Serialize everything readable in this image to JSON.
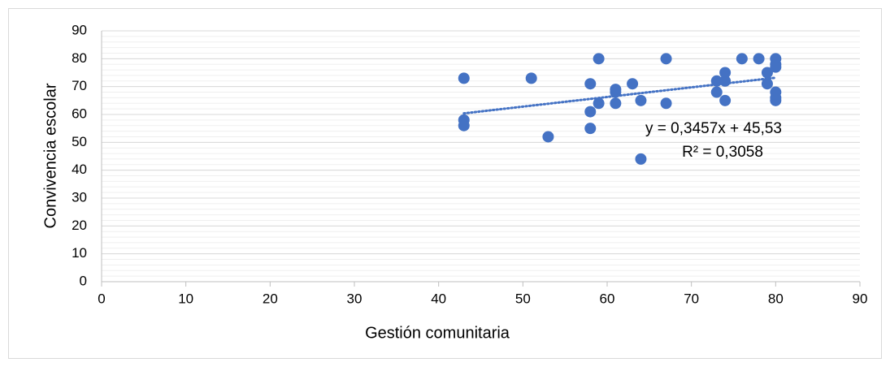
{
  "chart_data": {
    "type": "scatter",
    "x_label": "Gestión comunitaria",
    "y_label": "Convivencia escolar",
    "x": [
      43,
      43,
      43,
      51,
      53,
      58,
      58,
      58,
      59,
      59,
      61,
      61,
      61,
      63,
      64,
      64,
      67,
      67,
      73,
      73,
      74,
      74,
      74,
      76,
      78,
      79,
      79,
      80,
      80,
      80,
      80,
      80,
      80
    ],
    "values": [
      73,
      58,
      56,
      73,
      52,
      71,
      61,
      55,
      80,
      64,
      69,
      68,
      64,
      71,
      65,
      44,
      80,
      64,
      72,
      68,
      75,
      72,
      65,
      80,
      80,
      75,
      71,
      80,
      78,
      77,
      68,
      66,
      65
    ],
    "color": "#4472c4",
    "xlim": [
      0,
      90
    ],
    "xticks": [
      0,
      10,
      20,
      30,
      40,
      50,
      60,
      70,
      80,
      90
    ],
    "ylim": [
      0,
      90
    ],
    "yticks": [
      0,
      10,
      20,
      30,
      40,
      50,
      60,
      70,
      80,
      90
    ],
    "grid": true,
    "minor_grid_step": 2,
    "trendline": {
      "slope": 0.3457,
      "intercept": 45.53,
      "label": "y = 0,3457x + 45,53",
      "r2_label": "R² = 0,3058"
    }
  }
}
